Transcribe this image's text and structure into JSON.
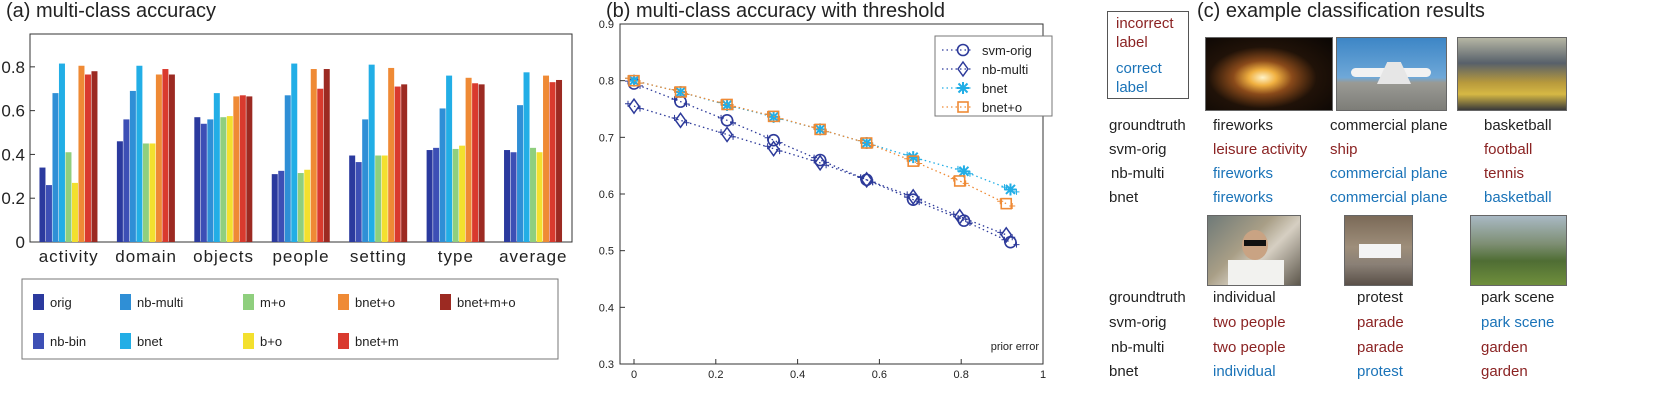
{
  "chart_data": [
    {
      "type": "bar",
      "title": "(a) multi-class accuracy",
      "categories": [
        "activity",
        "domain",
        "objects",
        "people",
        "setting",
        "type",
        "average"
      ],
      "ylim": [
        0,
        0.95
      ],
      "yticks": [
        "0",
        "0.2",
        "0.4",
        "0.6",
        "0.8"
      ],
      "grid": false,
      "legend_position": "bottom",
      "series": [
        {
          "name": "orig",
          "color": "#2b3a9e",
          "values": [
            0.34,
            0.46,
            0.57,
            0.31,
            0.395,
            0.42,
            0.42
          ]
        },
        {
          "name": "nb-bin",
          "color": "#3d4fb5",
          "values": [
            0.26,
            0.56,
            0.54,
            0.325,
            0.365,
            0.43,
            0.41
          ]
        },
        {
          "name": "nb-multi",
          "color": "#2f8fd6",
          "values": [
            0.68,
            0.69,
            0.56,
            0.67,
            0.56,
            0.61,
            0.625
          ]
        },
        {
          "name": "bnet",
          "color": "#22aee6",
          "values": [
            0.815,
            0.805,
            0.68,
            0.815,
            0.81,
            0.76,
            0.775
          ]
        },
        {
          "name": "m+o",
          "color": "#8fcf7e",
          "values": [
            0.41,
            0.45,
            0.57,
            0.315,
            0.395,
            0.425,
            0.43
          ]
        },
        {
          "name": "b+o",
          "color": "#f3e02e",
          "values": [
            0.27,
            0.45,
            0.575,
            0.33,
            0.395,
            0.44,
            0.41
          ]
        },
        {
          "name": "bnet+o",
          "color": "#ef8a35",
          "values": [
            0.805,
            0.765,
            0.665,
            0.79,
            0.795,
            0.75,
            0.76
          ]
        },
        {
          "name": "bnet+m",
          "color": "#d93a2e",
          "values": [
            0.765,
            0.79,
            0.67,
            0.7,
            0.71,
            0.725,
            0.73
          ]
        },
        {
          "name": "bnet+m+o",
          "color": "#9c2a22",
          "values": [
            0.78,
            0.765,
            0.665,
            0.79,
            0.72,
            0.72,
            0.74
          ]
        }
      ],
      "legend_order": [
        "orig",
        "nb-multi",
        "m+o",
        "bnet+o",
        "bnet+m+o",
        "nb-bin",
        "bnet",
        "b+o",
        "bnet+m"
      ]
    },
    {
      "type": "line",
      "title": "(b) multi-class accuracy with threshold",
      "xlabel": "prior error",
      "xlim": [
        0,
        1
      ],
      "ylim": [
        0.3,
        0.9
      ],
      "xticks": [
        "0",
        "0.2",
        "0.4",
        "0.6",
        "0.8",
        "1"
      ],
      "yticks": [
        "0.3",
        "0.4",
        "0.5",
        "0.6",
        "0.7",
        "0.8",
        "0.9"
      ],
      "legend_position": "top-right",
      "series": [
        {
          "name": "svm-orig",
          "color": "#2d3a9a",
          "marker": "circle",
          "line": "dotted",
          "x": [
            0,
            0.11,
            0.22,
            0.33,
            0.44,
            0.55,
            0.66,
            0.78,
            0.89
          ],
          "y": [
            0.795,
            0.763,
            0.73,
            0.695,
            0.66,
            0.625,
            0.59,
            0.553,
            0.515
          ]
        },
        {
          "name": "nb-multi",
          "color": "#2d3a9a",
          "marker": "diamond",
          "line": "dotted",
          "x": [
            0,
            0.11,
            0.22,
            0.33,
            0.44,
            0.55,
            0.66,
            0.77,
            0.88
          ],
          "y": [
            0.755,
            0.73,
            0.705,
            0.68,
            0.655,
            0.625,
            0.595,
            0.56,
            0.528
          ]
        },
        {
          "name": "bnet",
          "color": "#22aee6",
          "marker": "star",
          "line": "dotted",
          "x": [
            0,
            0.11,
            0.22,
            0.33,
            0.44,
            0.55,
            0.66,
            0.78,
            0.89
          ],
          "y": [
            0.8,
            0.78,
            0.757,
            0.736,
            0.714,
            0.69,
            0.665,
            0.64,
            0.608
          ]
        },
        {
          "name": "bnet+o",
          "color": "#ef8a35",
          "marker": "square",
          "line": "dotted",
          "x": [
            0,
            0.11,
            0.22,
            0.33,
            0.44,
            0.55,
            0.66,
            0.77,
            0.88
          ],
          "y": [
            0.8,
            0.78,
            0.758,
            0.737,
            0.714,
            0.69,
            0.658,
            0.623,
            0.583
          ]
        }
      ]
    }
  ],
  "panel_c": {
    "title": "(c) example classification results",
    "legend": {
      "incorrect": "incorrect label",
      "correct": "correct label"
    },
    "row_labels": [
      "groundtruth",
      "svm-orig",
      "nb-multi",
      "bnet"
    ],
    "groups": [
      {
        "columns": [
          {
            "image": "fireworks photo",
            "cells": [
              {
                "text": "fireworks",
                "status": "truth"
              },
              {
                "text": "leisure activity",
                "status": "incorrect"
              },
              {
                "text": "fireworks",
                "status": "correct"
              },
              {
                "text": "fireworks",
                "status": "correct"
              }
            ]
          },
          {
            "image": "airplane photo",
            "cells": [
              {
                "text": "commercial plane",
                "status": "truth"
              },
              {
                "text": "ship",
                "status": "incorrect"
              },
              {
                "text": "commercial plane",
                "status": "correct"
              },
              {
                "text": "commercial plane",
                "status": "correct"
              }
            ]
          },
          {
            "image": "stadium photo",
            "cells": [
              {
                "text": "basketball",
                "status": "truth"
              },
              {
                "text": "football",
                "status": "incorrect"
              },
              {
                "text": "tennis",
                "status": "incorrect"
              },
              {
                "text": "basketball",
                "status": "correct"
              }
            ]
          }
        ]
      },
      {
        "columns": [
          {
            "image": "person with sunglasses photo",
            "cells": [
              {
                "text": "individual",
                "status": "truth"
              },
              {
                "text": "two people",
                "status": "incorrect"
              },
              {
                "text": "two people",
                "status": "incorrect"
              },
              {
                "text": "individual",
                "status": "correct"
              }
            ]
          },
          {
            "image": "protest photo",
            "cells": [
              {
                "text": "protest",
                "status": "truth"
              },
              {
                "text": "parade",
                "status": "incorrect"
              },
              {
                "text": "parade",
                "status": "incorrect"
              },
              {
                "text": "protest",
                "status": "correct"
              }
            ]
          },
          {
            "image": "park photo",
            "cells": [
              {
                "text": "park scene",
                "status": "truth"
              },
              {
                "text": "park scene",
                "status": "correct"
              },
              {
                "text": "garden",
                "status": "incorrect"
              },
              {
                "text": "garden",
                "status": "incorrect"
              }
            ]
          }
        ]
      }
    ]
  }
}
